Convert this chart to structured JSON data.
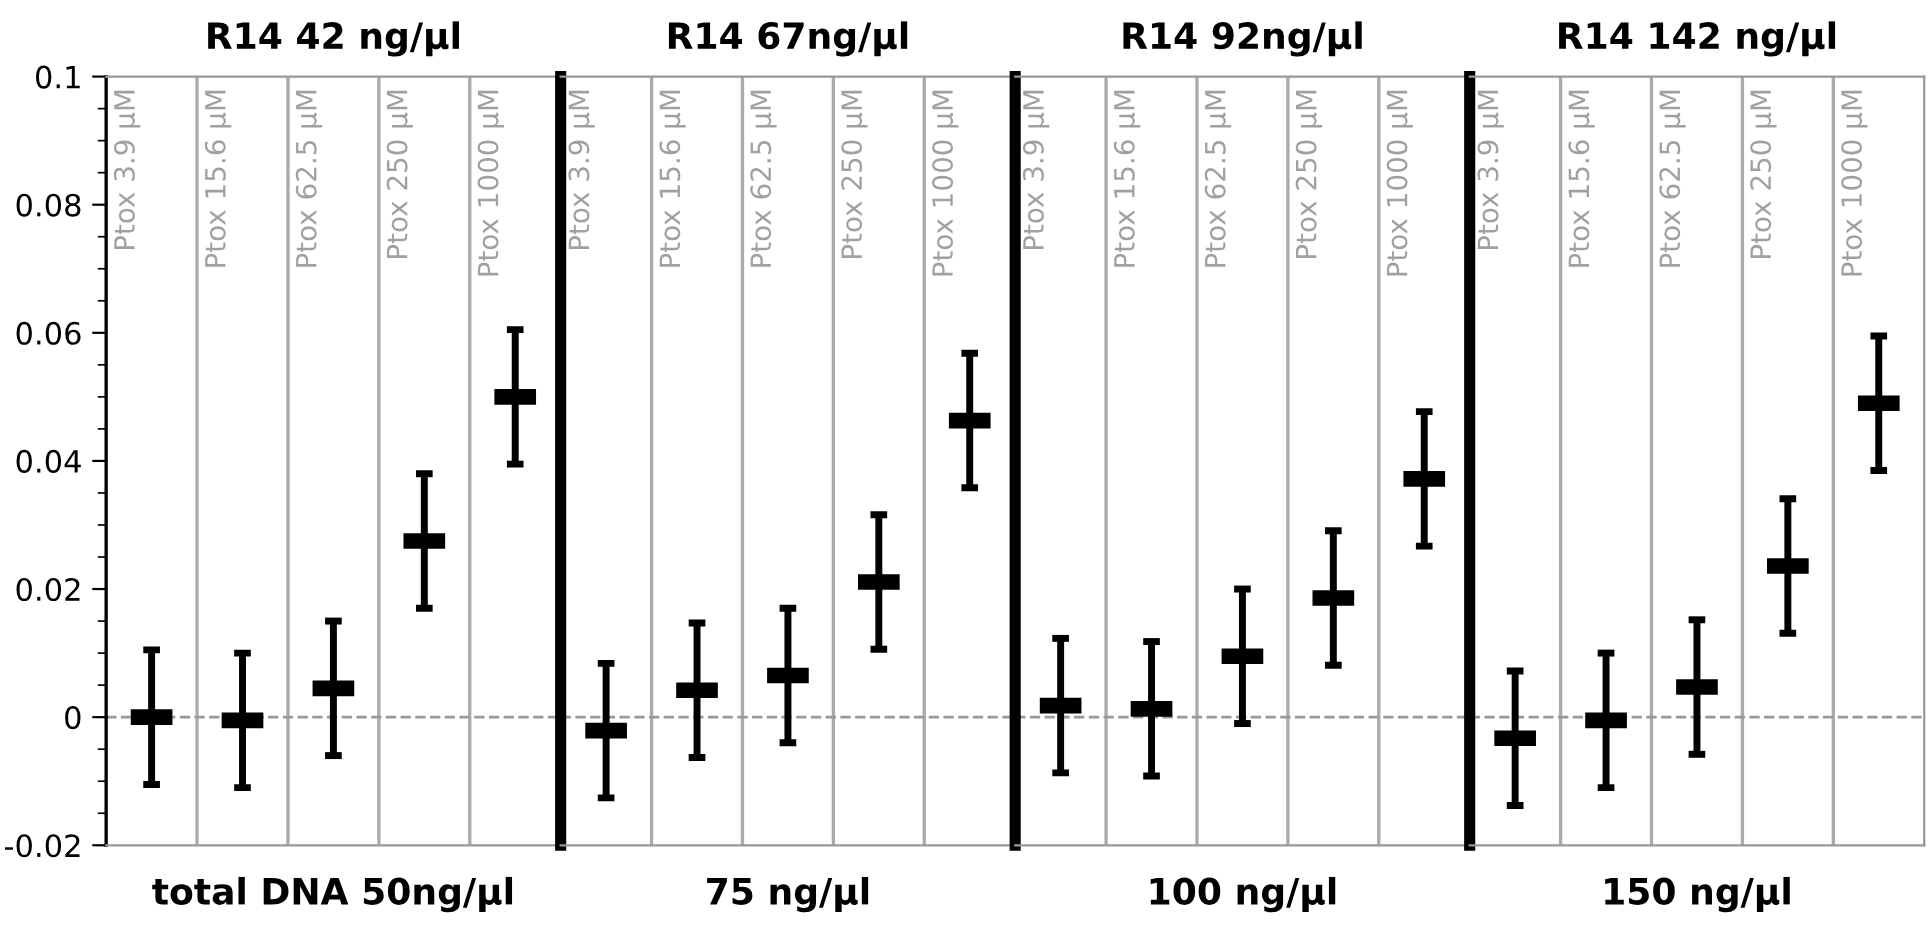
{
  "chart_data": [
    {
      "type": "scatter",
      "title": "R14 42 ng/µl",
      "xlabel": "total DNA 50ng/µl",
      "categories": [
        "Ptox 3.9 µM",
        "Ptox 15.6 µM",
        "Ptox 62.5 µM",
        "Ptox 250 µM",
        "Ptox 1000 µM"
      ],
      "values": [
        0.0,
        -0.0005,
        0.0045,
        0.0275,
        0.05
      ],
      "errors": [
        0.0105,
        0.0105,
        0.0105,
        0.0105,
        0.0105
      ],
      "color": "#000000",
      "marker": "square",
      "ylim": [
        -0.02,
        0.1
      ],
      "yticks": [
        -0.02,
        0,
        0.02,
        0.04,
        0.06,
        0.08,
        0.1
      ],
      "grid": "x",
      "ref_lines": [
        {
          "axis": "y",
          "value": 0,
          "color": "#999999",
          "line_style": "dashed"
        }
      ]
    },
    {
      "type": "scatter",
      "title": "R14 67ng/µl",
      "xlabel": "75 ng/µl",
      "categories": [
        "Ptox 3.9 µM",
        "Ptox 15.6 µM",
        "Ptox 62.5 µM",
        "Ptox 250 µM",
        "Ptox 1000 µM"
      ],
      "values": [
        -0.0021,
        0.0042,
        0.0065,
        0.0211,
        0.0463
      ],
      "errors": [
        0.0105,
        0.0105,
        0.0105,
        0.0105,
        0.0105
      ],
      "color": "#000000",
      "marker": "square",
      "ylim": [
        -0.02,
        0.1
      ],
      "yticks": [
        -0.02,
        0,
        0.02,
        0.04,
        0.06,
        0.08,
        0.1
      ],
      "grid": "x",
      "tick_labels": "x",
      "ref_lines": [
        {
          "axis": "y",
          "value": 0,
          "color": "#999999",
          "line_style": "dashed"
        }
      ]
    },
    {
      "type": "scatter",
      "title": "R14 92ng/µl",
      "xlabel": "100 ng/µl",
      "categories": [
        "Ptox 3.9 µM",
        "Ptox 15.6 µM",
        "Ptox 62.5 µM",
        "Ptox 250 µM",
        "Ptox 1000 µM"
      ],
      "values": [
        0.0018,
        0.0013,
        0.0095,
        0.0186,
        0.0372
      ],
      "errors": [
        0.0105,
        0.0105,
        0.0105,
        0.0105,
        0.0105
      ],
      "color": "#000000",
      "marker": "square",
      "ylim": [
        -0.02,
        0.1
      ],
      "yticks": [
        -0.02,
        0,
        0.02,
        0.04,
        0.06,
        0.08,
        0.1
      ],
      "grid": "x",
      "tick_labels": "x",
      "ref_lines": [
        {
          "axis": "y",
          "value": 0,
          "color": "#999999",
          "line_style": "dashed"
        }
      ]
    },
    {
      "type": "scatter",
      "title": "R14 142 ng/µl",
      "xlabel": "150 ng/µl",
      "categories": [
        "Ptox 3.9 µM",
        "Ptox 15.6 µM",
        "Ptox 62.5 µM",
        "Ptox 250 µM",
        "Ptox 1000 µM"
      ],
      "values": [
        -0.0033,
        -0.0005,
        0.0047,
        0.0236,
        0.049
      ],
      "errors": [
        0.0105,
        0.0105,
        0.0105,
        0.0105,
        0.0105
      ],
      "color": "#000000",
      "marker": "square",
      "ylim": [
        -0.02,
        0.1
      ],
      "yticks": [
        -0.02,
        0,
        0.02,
        0.04,
        0.06,
        0.08,
        0.1
      ],
      "grid": "x",
      "tick_labels": "x",
      "ref_lines": [
        {
          "axis": "y",
          "value": 0,
          "color": "#999999",
          "line_style": "dashed"
        }
      ]
    }
  ]
}
